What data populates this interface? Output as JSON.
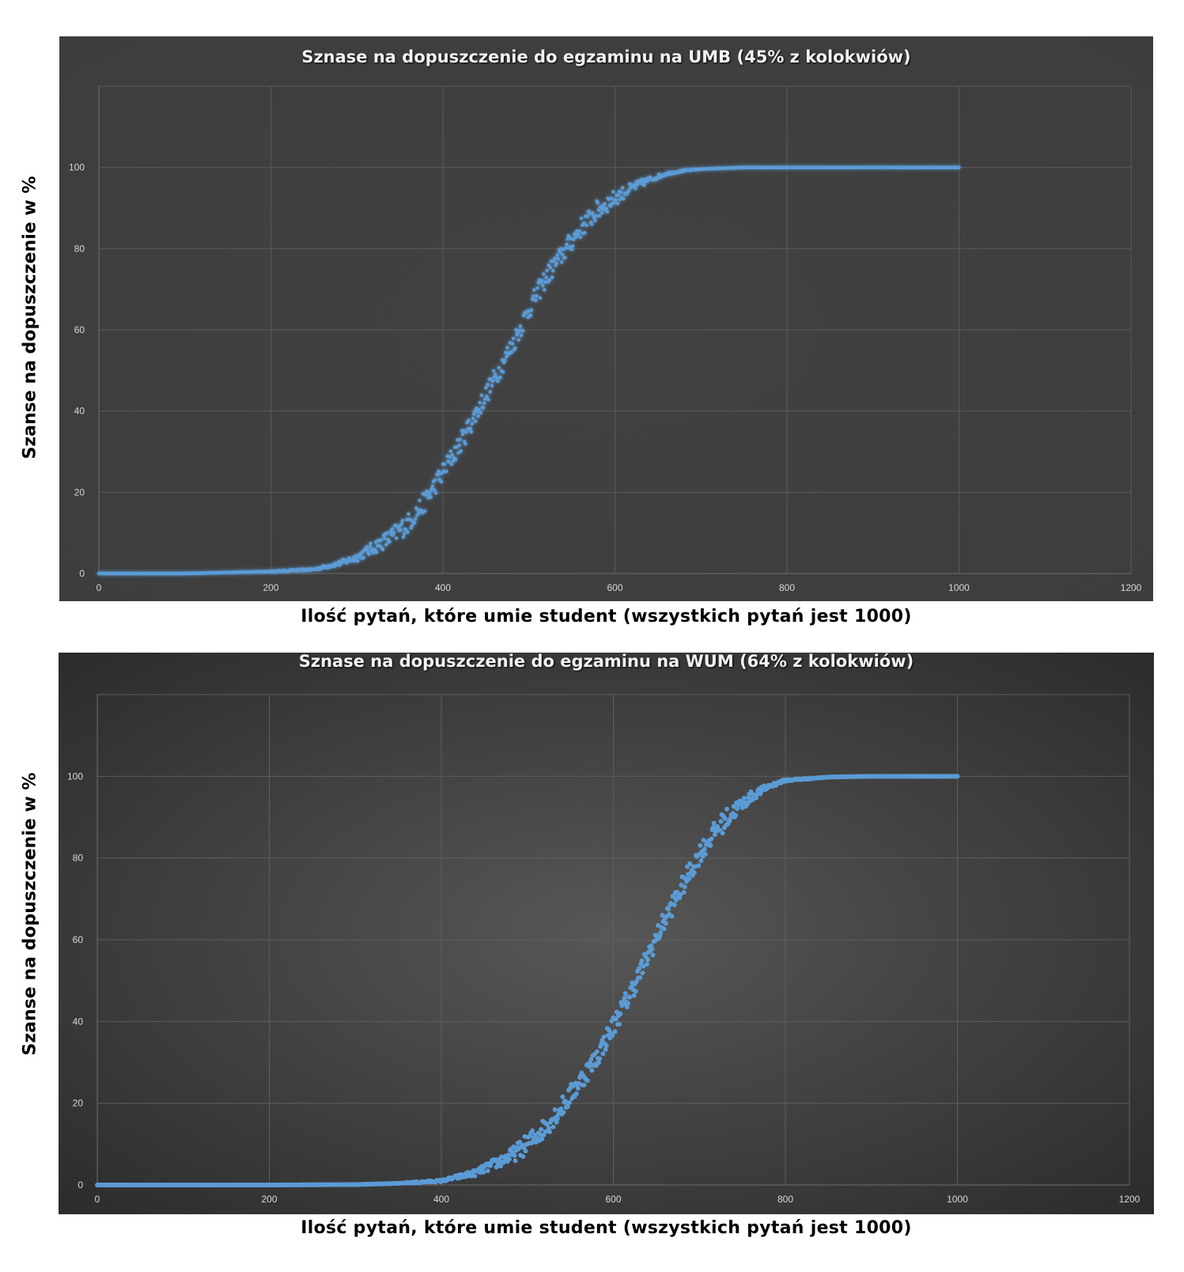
{
  "chart_data": [
    {
      "type": "scatter",
      "title": "Sznase na dopuszczenie do egzaminu na UMB (45% z kolokwiów)",
      "xlabel": "Ilość pytań, które umie student (wszystkich pytań jest 1000)",
      "ylabel": "Szanse na dopuszczenie w %",
      "xlim": [
        0,
        1200
      ],
      "ylim": [
        0,
        120
      ],
      "x_ticks": [
        "0",
        "200",
        "400",
        "600",
        "800",
        "1000",
        "1200"
      ],
      "y_ticks": [
        "0",
        "20",
        "40",
        "60",
        "80",
        "100"
      ],
      "grid": true,
      "colors": {
        "background": "#404040",
        "grid": "#5a5a5a",
        "points": "#5b9bd5",
        "glow": "#7fb8f0"
      },
      "series": [
        {
          "x": [
            0,
            100,
            200,
            250,
            280,
            300,
            320,
            340,
            360,
            380,
            400,
            420,
            440,
            460,
            480,
            500,
            520,
            540,
            560,
            580,
            600,
            620,
            640,
            660,
            680,
            700,
            750,
            800,
            1000
          ],
          "y": [
            0,
            0,
            0.5,
            1,
            2.5,
            4,
            6.5,
            9,
            12.5,
            18,
            25,
            32,
            40,
            48,
            56,
            65,
            73,
            79,
            85,
            89.5,
            92.5,
            95,
            97,
            98.5,
            99.2,
            99.6,
            100,
            100,
            100
          ]
        }
      ]
    },
    {
      "type": "scatter",
      "title": "Sznase na dopuszczenie do egzaminu na WUM (64% z kolokwiów)",
      "xlabel": "Ilość pytań, które umie student (wszystkich pytań jest 1000)",
      "ylabel": "Szanse na dopuszczenie w %",
      "xlim": [
        0,
        1200
      ],
      "ylim": [
        0,
        120
      ],
      "x_ticks": [
        "0",
        "200",
        "400",
        "600",
        "800",
        "1000",
        "1200"
      ],
      "y_ticks": [
        "0",
        "20",
        "40",
        "60",
        "80",
        "100"
      ],
      "grid": true,
      "colors": {
        "background": "#4a4a4a",
        "grid": "#5e5e5e",
        "points": "#5b9bd5"
      },
      "series": [
        {
          "x": [
            0,
            100,
            200,
            300,
            350,
            400,
            420,
            440,
            460,
            480,
            500,
            520,
            540,
            560,
            580,
            600,
            620,
            640,
            660,
            680,
            700,
            720,
            740,
            760,
            780,
            800,
            850,
            900,
            1000
          ],
          "y": [
            0,
            0,
            0,
            0.1,
            0.4,
            1,
            2,
            3,
            5,
            7,
            10,
            14,
            19,
            25,
            31,
            39,
            47,
            56,
            65,
            73,
            81,
            87,
            91.5,
            95,
            97.5,
            99,
            99.8,
            100,
            100
          ]
        }
      ]
    }
  ]
}
